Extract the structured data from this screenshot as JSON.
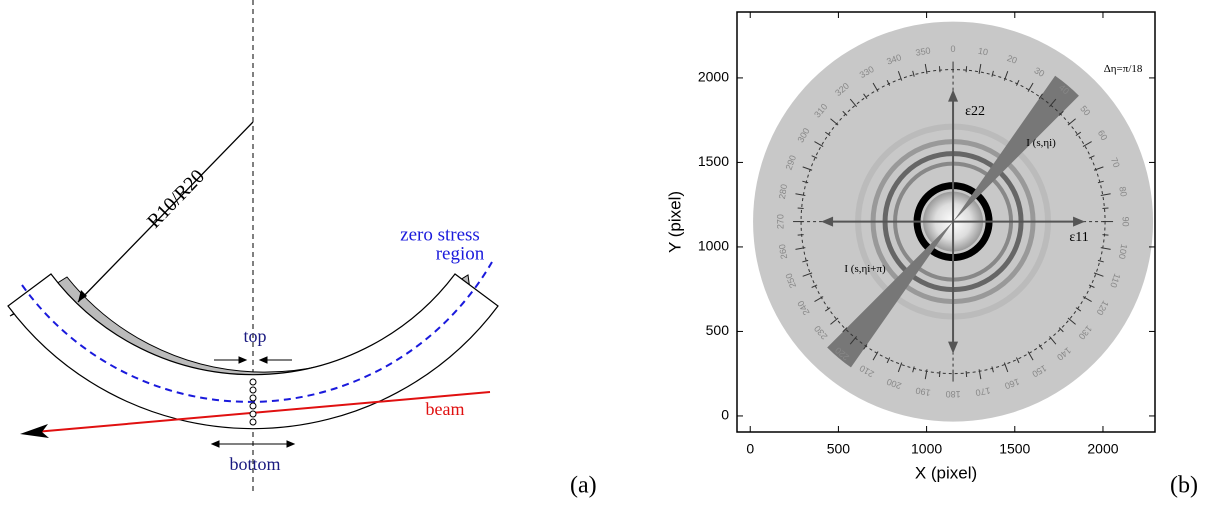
{
  "panel_a": {
    "label": "(a)",
    "radius_label": "R10/R20",
    "zero_stress_label": [
      "zero stress",
      "region"
    ],
    "top_label": "top",
    "bottom_label": "bottom",
    "beam_label": "beam"
  },
  "panel_b": {
    "label": "(b)",
    "xlabel": "X (pixel)",
    "ylabel": "Y (pixel)",
    "xlim": [
      -75,
      2295
    ],
    "ylim": [
      -95,
      2390
    ],
    "xticks": [
      0,
      500,
      1000,
      1500,
      2000
    ],
    "yticks": [
      0,
      500,
      1000,
      1500,
      2000
    ],
    "center": [
      1150,
      1150
    ],
    "wedge_label": "Δη=π/18",
    "e22_label": "ε22",
    "e11_label": "ε11",
    "i_label": "I (s,ηi)",
    "i_pi_label": "I (s,ηi+π)",
    "angle_ticks": [
      0,
      10,
      20,
      30,
      40,
      50,
      60,
      70,
      80,
      90,
      100,
      110,
      120,
      130,
      140,
      150,
      160,
      170,
      180,
      190,
      200,
      210,
      220,
      230,
      240,
      250,
      260,
      270,
      280,
      290,
      300,
      310,
      320,
      330,
      340,
      350
    ]
  }
}
